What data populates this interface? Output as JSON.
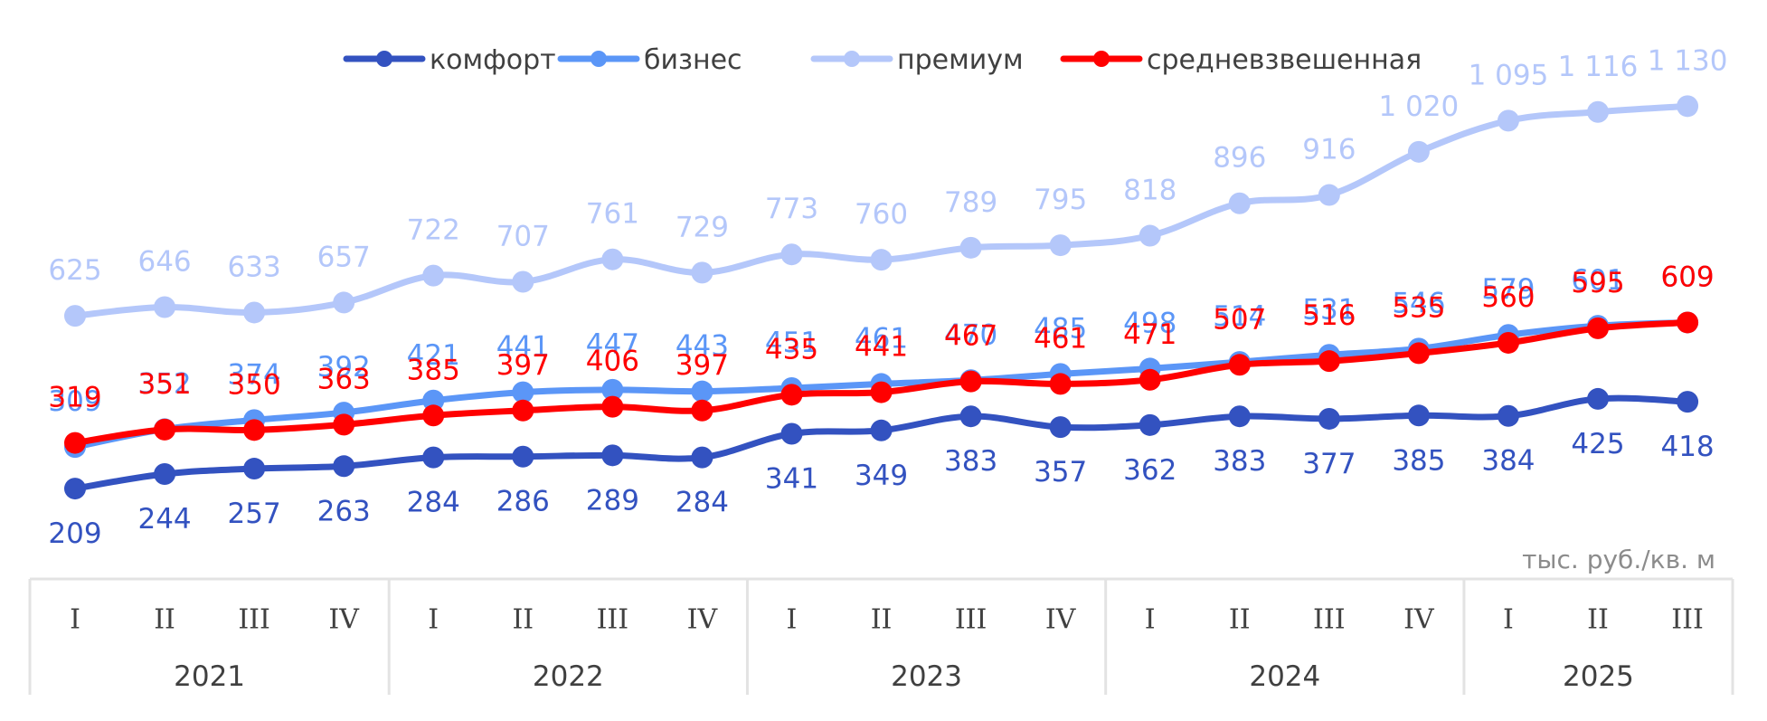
{
  "chart_data": {
    "type": "line",
    "title": "",
    "xlabel": "",
    "ylabel": "",
    "unit_label": "тыс. руб./кв. м",
    "grid": false,
    "legend_position": "top",
    "x_groups": [
      {
        "year": "2021",
        "quarters": [
          "I",
          "II",
          "III",
          "IV"
        ]
      },
      {
        "year": "2022",
        "quarters": [
          "I",
          "II",
          "III",
          "IV"
        ]
      },
      {
        "year": "2023",
        "quarters": [
          "I",
          "II",
          "III",
          "IV"
        ]
      },
      {
        "year": "2024",
        "quarters": [
          "I",
          "II",
          "III",
          "IV"
        ]
      },
      {
        "year": "2025",
        "quarters": [
          "I",
          "II",
          "III"
        ]
      }
    ],
    "categories": [
      "2021 I",
      "2021 II",
      "2021 III",
      "2021 IV",
      "2022 I",
      "2022 II",
      "2022 III",
      "2022 IV",
      "2023 I",
      "2023 II",
      "2023 III",
      "2023 IV",
      "2024 I",
      "2024 II",
      "2024 III",
      "2024 IV",
      "2025 I",
      "2025 II",
      "2025 III"
    ],
    "series": [
      {
        "name": "комфорт",
        "color": "#3352C0",
        "label_position": "below",
        "values": [
          209,
          244,
          257,
          263,
          284,
          286,
          289,
          284,
          341,
          349,
          383,
          357,
          362,
          383,
          377,
          385,
          384,
          425,
          418
        ],
        "labels": [
          "209",
          "244",
          "257",
          "263",
          "284",
          "286",
          "289",
          "284",
          "341",
          "349",
          "383",
          "357",
          "362",
          "383",
          "377",
          "385",
          "384",
          "425",
          "418"
        ]
      },
      {
        "name": "бизнес",
        "color": "#5B96F7",
        "label_position": "above",
        "values": [
          309,
          352,
          374,
          392,
          421,
          441,
          447,
          443,
          451,
          461,
          470,
          485,
          498,
          514,
          531,
          546,
          579,
          601,
          609
        ],
        "labels": [
          "309",
          "352",
          "374",
          "392",
          "421",
          "441",
          "447",
          "443",
          "451",
          "461",
          "470",
          "485",
          "498",
          "514",
          "531",
          "546",
          "579",
          "601",
          "609"
        ]
      },
      {
        "name": "премиум",
        "color": "#B4C7FA",
        "label_position": "above",
        "values": [
          625,
          646,
          633,
          657,
          722,
          707,
          761,
          729,
          773,
          760,
          789,
          795,
          818,
          896,
          916,
          1020,
          1095,
          1116,
          1130
        ],
        "labels": [
          "625",
          "646",
          "633",
          "657",
          "722",
          "707",
          "761",
          "729",
          "773",
          "760",
          "789",
          "795",
          "818",
          "896",
          "916",
          "1 020",
          "1 095",
          "1 116",
          "1 130"
        ]
      },
      {
        "name": "средневзвешенная",
        "color": "#FF0000",
        "label_position": "above",
        "values": [
          319,
          351,
          350,
          363,
          385,
          397,
          406,
          397,
          435,
          441,
          467,
          461,
          471,
          507,
          516,
          535,
          560,
          595,
          609
        ],
        "labels": [
          "319",
          "351",
          "350",
          "363",
          "385",
          "397",
          "406",
          "397",
          "435",
          "441",
          "467",
          "461",
          "471",
          "507",
          "516",
          "535",
          "560",
          "595",
          "609"
        ]
      }
    ],
    "ylim": [
      150,
      1200
    ]
  },
  "legend": {
    "items": [
      {
        "label": "комфорт",
        "color": "#3352C0"
      },
      {
        "label": "бизнес",
        "color": "#5B96F7"
      },
      {
        "label": "премиум",
        "color": "#B4C7FA"
      },
      {
        "label": "средневзвешенная",
        "color": "#FF0000"
      }
    ]
  }
}
